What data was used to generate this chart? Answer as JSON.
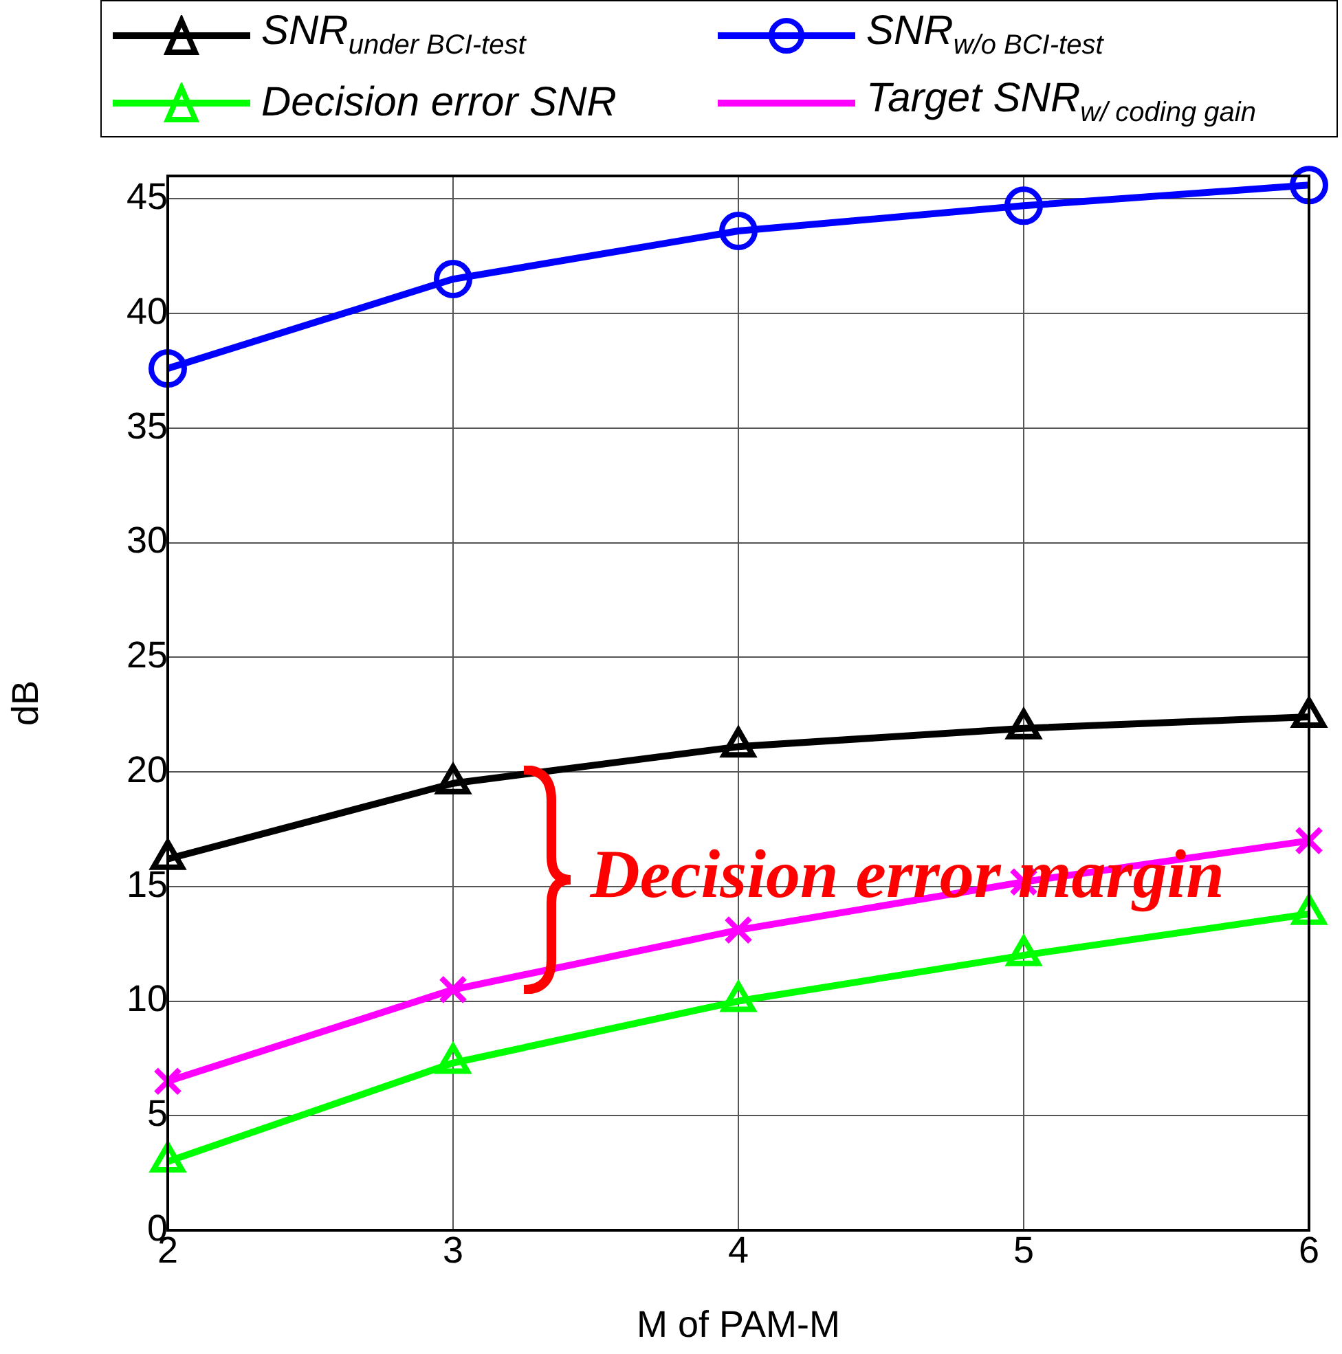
{
  "chart_data": {
    "type": "line",
    "xlabel": "M of PAM-M",
    "ylabel": "dB",
    "x": [
      2,
      3,
      4,
      5,
      6
    ],
    "series": [
      {
        "name": "SNR$_{under BCI-test}$",
        "color": "#000000",
        "marker": "triangle",
        "values": [
          16.2,
          19.5,
          21.1,
          21.9,
          22.4
        ]
      },
      {
        "name": "SNR$_{w/o BCI-test}$",
        "color": "#0000ff",
        "marker": "circle",
        "values": [
          37.6,
          41.5,
          43.6,
          44.7,
          45.6
        ]
      },
      {
        "name": "Decision error SNR",
        "color": "#00ff00",
        "marker": "triangle",
        "values": [
          3.0,
          7.3,
          10.0,
          12.0,
          13.8
        ]
      },
      {
        "name": "Target SNR$_{w/ coding gain}$",
        "color": "#ff00ff",
        "marker": "cross",
        "values": [
          6.5,
          10.5,
          13.1,
          15.2,
          17.0
        ]
      }
    ],
    "xlim": [
      2,
      6
    ],
    "xticks": [
      2,
      3,
      4,
      5,
      6
    ],
    "ylim": [
      0,
      46
    ],
    "yticks": [
      0,
      5,
      10,
      15,
      20,
      25,
      30,
      35,
      40,
      45
    ],
    "grid": true,
    "legend": "top",
    "line_style": "solid",
    "annotations": [
      "Decision error margin"
    ]
  }
}
